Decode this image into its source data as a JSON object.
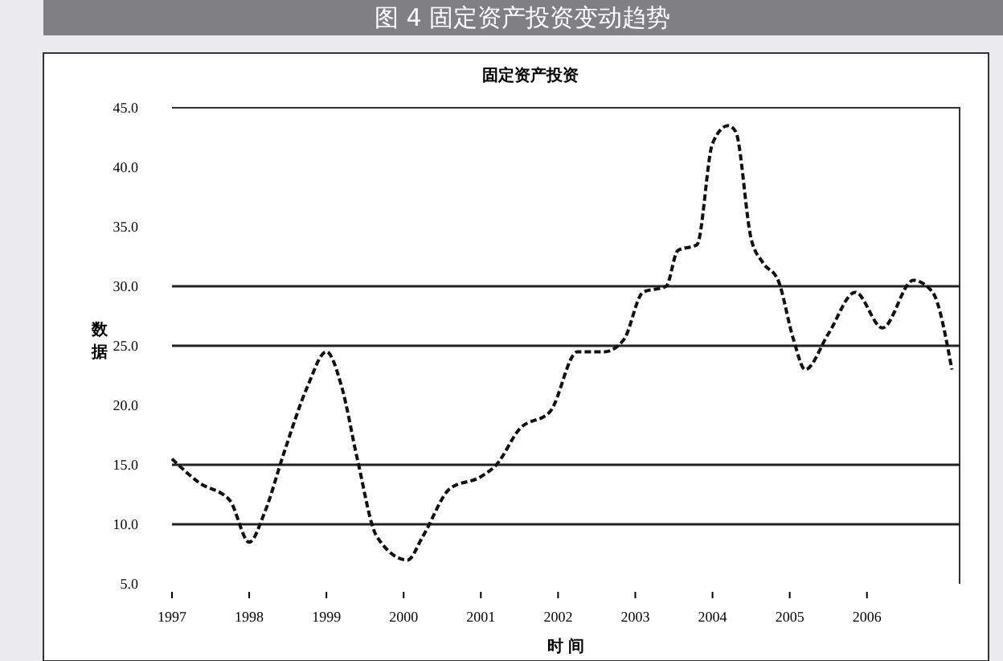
{
  "chart_data": {
    "type": "line",
    "title": "图 4 固定资产投资变动趋势",
    "subtitle": "固定资产投资",
    "xlabel": "时 间",
    "ylabel": "数据",
    "x": [
      1997,
      1997.35,
      1997.75,
      1998,
      1998.2,
      1998.45,
      1998.75,
      1999,
      1999.2,
      1999.4,
      1999.65,
      2000.05,
      2000.25,
      2000.6,
      2001,
      2001.2,
      2001.5,
      2001.9,
      2002.25,
      2002.6,
      2002.85,
      2003.1,
      2003.4,
      2003.55,
      2003.8,
      2004,
      2004.2,
      2004.3,
      2004.5,
      2004.65,
      2004.85,
      2005.05,
      2005.2,
      2005.5,
      2005.85,
      2006.2,
      2006.6,
      2006.85,
      2007.1
    ],
    "series": [
      {
        "color": "#111111",
        "values": [
          15.5,
          13.5,
          12,
          8.5,
          11,
          16,
          21.5,
          24.5,
          21.5,
          15.5,
          9,
          7,
          9,
          13,
          14,
          15,
          18,
          19.5,
          24.5,
          24.5,
          25.5,
          29.5,
          30,
          33,
          33.5,
          42,
          43.5,
          43,
          34,
          32,
          30.5,
          25.5,
          23,
          26,
          29.5,
          26.5,
          30.5,
          29.5,
          23
        ]
      }
    ],
    "xlim": [
      1997,
      2007.2
    ],
    "xticks": [
      1997,
      1998,
      1999,
      2000,
      2001,
      2002,
      2003,
      2004,
      2005,
      2006
    ],
    "ylim": [
      5,
      45
    ],
    "yticks": [
      {
        "value": 5,
        "label": "5.0"
      },
      {
        "value": 10,
        "label": "10.0"
      },
      {
        "value": 15,
        "label": "15.0"
      },
      {
        "value": 20,
        "label": "20.0"
      },
      {
        "value": 25,
        "label": "25.0"
      },
      {
        "value": 30,
        "label": "30.0"
      },
      {
        "value": 35,
        "label": "35.0"
      },
      {
        "value": 40,
        "label": "40.0"
      },
      {
        "value": 45,
        "label": "45.0"
      }
    ],
    "ref_lines": [
      {
        "axis": "y",
        "value": 10,
        "color": "#222222"
      },
      {
        "axis": "y",
        "value": 15,
        "color": "#222222"
      },
      {
        "axis": "y",
        "value": 25,
        "color": "#222222"
      },
      {
        "axis": "y",
        "value": 30,
        "color": "#222222"
      }
    ],
    "grid": false,
    "marker": "none",
    "line_style": "dashed"
  }
}
